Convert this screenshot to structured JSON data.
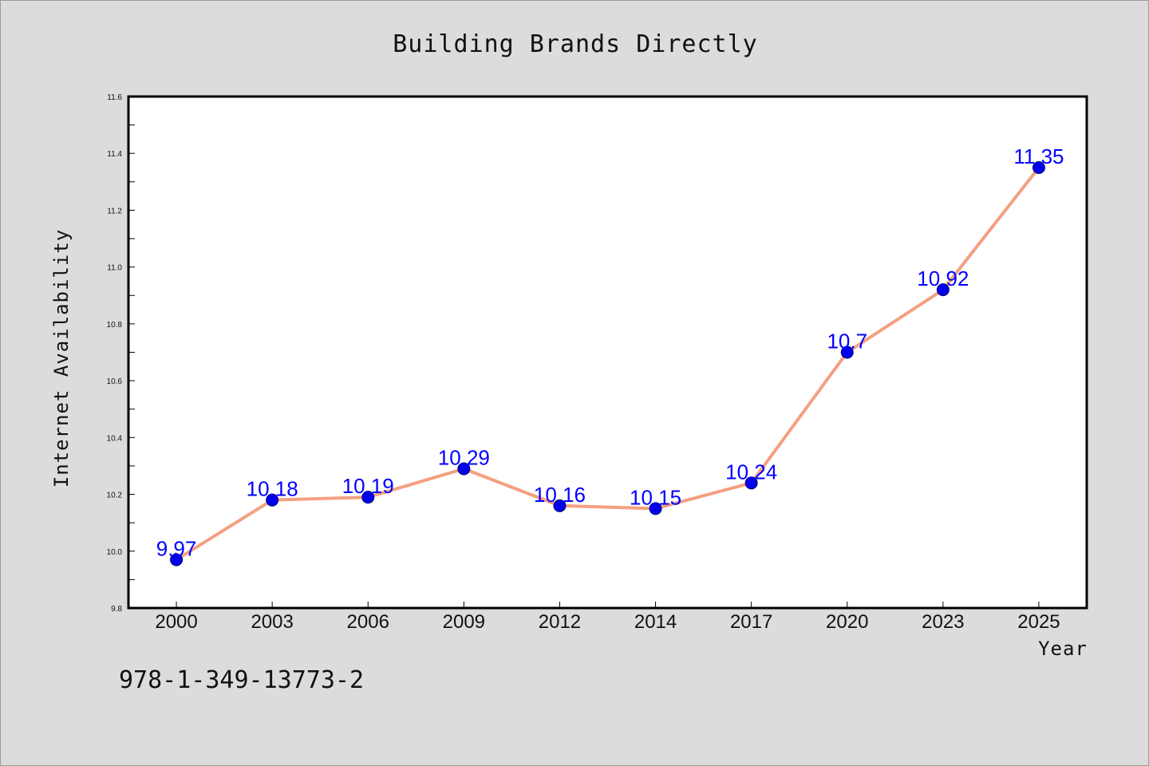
{
  "chart_data": {
    "type": "line",
    "title": "Building Brands Directly",
    "xlabel": "Year",
    "ylabel": "Internet Availability",
    "categories": [
      "2000",
      "2003",
      "2006",
      "2009",
      "2012",
      "2014",
      "2017",
      "2020",
      "2023",
      "2025"
    ],
    "series": [
      {
        "values": [
          9.97,
          10.18,
          10.19,
          10.29,
          10.16,
          10.15,
          10.24,
          10.7,
          10.92,
          11.35
        ],
        "data_labels": [
          "9.97",
          "10.18",
          "10.19",
          "10.29",
          "10.16",
          "10.15",
          "10.24",
          "10.7",
          "10.92",
          "11.35"
        ]
      }
    ],
    "ylim": [
      9.8,
      11.6
    ],
    "yticks": [
      "9.8",
      "10.0",
      "10.2",
      "10.4",
      "10.6",
      "10.8",
      "11.0",
      "11.2",
      "11.4",
      "11.6"
    ],
    "grid": false,
    "legend": "none",
    "colors": {
      "line": "#f4a080",
      "marker": "#0000ee",
      "marker_edge": "#000066",
      "data_label": "#0000ff",
      "background": "#dcdcdc",
      "plot_background": "#ffffff"
    }
  },
  "footer": {
    "isbn": "978-1-349-13773-2"
  }
}
